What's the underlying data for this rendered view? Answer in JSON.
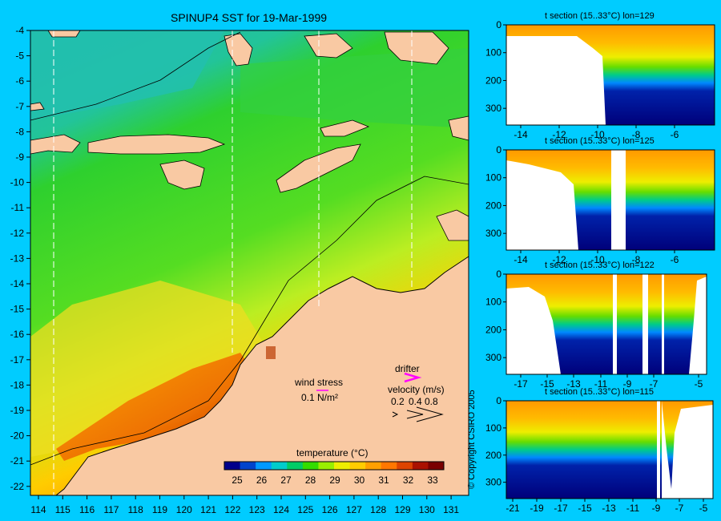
{
  "main_map": {
    "title": "SPINUP4 SST for 19-Mar-1999",
    "lon_ticks": [
      "114",
      "115",
      "116",
      "117",
      "118",
      "119",
      "120",
      "121",
      "122",
      "123",
      "124",
      "125",
      "126",
      "127",
      "128",
      "129",
      "130",
      "131"
    ],
    "lat_ticks": [
      "-4",
      "-5",
      "-6",
      "-7",
      "-8",
      "-9",
      "-10",
      "-11",
      "-12",
      "-13",
      "-14",
      "-15",
      "-16",
      "-17",
      "-18",
      "-19",
      "-20",
      "-21",
      "-22"
    ],
    "section_lines_lon": [
      114.5,
      122,
      125.5,
      129.3
    ],
    "colors": {
      "land": "#f9c9a3",
      "sea_green": "#2ed02e",
      "coast": "#000000",
      "section_line": "#ffffff"
    }
  },
  "legends": {
    "wind_label": "wind stress",
    "wind_value": "0.1 N/m²",
    "drifter_label": "drifter",
    "velocity_label": "velocity (m/s)",
    "velocity_ticks": [
      "0.2",
      "0.4",
      "0.8"
    ],
    "temperature_label": "temperature (°C)",
    "temperature_ticks": [
      "25",
      "26",
      "27",
      "28",
      "29",
      "30",
      "31",
      "32",
      "33"
    ],
    "temperature_colors": [
      "#00008b",
      "#0044cc",
      "#0099ff",
      "#00cccc",
      "#00cc66",
      "#33dd00",
      "#99ee00",
      "#eeee00",
      "#ffcc00",
      "#ffa000",
      "#ff7700",
      "#dd4400",
      "#aa1100",
      "#7a0000"
    ]
  },
  "sections": [
    {
      "title": "t section (15..33°C) lon=129",
      "x_ticks": [
        "-14",
        "-12",
        "-10",
        "-8",
        "-6"
      ],
      "y_ticks": [
        "0",
        "100",
        "200",
        "300"
      ]
    },
    {
      "title": "t section (15..33°C) lon=125",
      "x_ticks": [
        "-14",
        "-12",
        "-10",
        "-8",
        "-6"
      ],
      "y_ticks": [
        "0",
        "100",
        "200",
        "300"
      ]
    },
    {
      "title": "t section (15..33°C) lon=122",
      "x_ticks": [
        "-17",
        "-15",
        "-13",
        "-11",
        "-9",
        "-7",
        "-5"
      ],
      "y_ticks": [
        "0",
        "100",
        "200",
        "300"
      ]
    },
    {
      "title": "t section (15..33°C) lon=115",
      "x_ticks": [
        "-21",
        "-19",
        "-17",
        "-15",
        "-13",
        "-11",
        "-9",
        "-7",
        "-5"
      ],
      "y_ticks": [
        "0",
        "100",
        "200",
        "300"
      ]
    }
  ],
  "copyright": "© Copyright CSIRO 2005"
}
